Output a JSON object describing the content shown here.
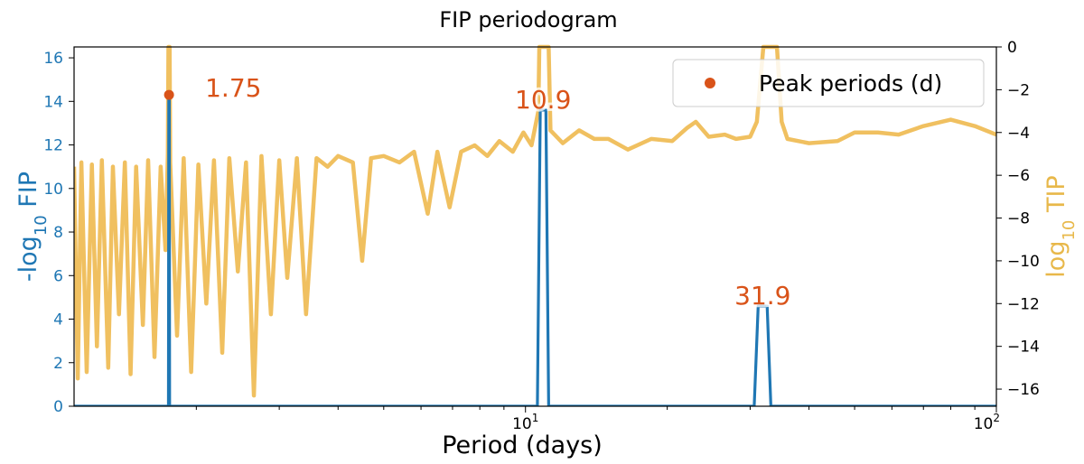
{
  "chart_data": {
    "type": "line",
    "title": "FIP periodogram",
    "xlabel": "Period (days)",
    "xscale": "log",
    "xlim": [
      1.1,
      100
    ],
    "x_ticks": [
      {
        "value": 10,
        "base": "10",
        "exp": "1"
      },
      {
        "value": 100,
        "base": "10",
        "exp": "2"
      }
    ],
    "y_left": {
      "label_prefix": "-log",
      "label_sub": "10",
      "label_suffix": " FIP",
      "lim": [
        0,
        16.5
      ],
      "ticks": [
        0,
        2,
        4,
        6,
        8,
        10,
        12,
        14,
        16
      ],
      "color": "#1f77b4"
    },
    "y_right": {
      "label_prefix": "log",
      "label_sub": "10",
      "label_suffix": " TIP",
      "lim": [
        -16.8,
        0
      ],
      "ticks": [
        0,
        -2,
        -4,
        -6,
        -8,
        -10,
        -12,
        -14,
        -16
      ],
      "color": "#f0c060"
    },
    "legend": {
      "label": "Peak periods (d)",
      "position": "upper-right"
    },
    "peaks": [
      {
        "period": 1.75,
        "label": "1.75",
        "fip": 14.3
      },
      {
        "period": 10.9,
        "label": "10.9",
        "fip": 13.6
      },
      {
        "period": 31.9,
        "label": "31.9",
        "fip": 4.6
      }
    ],
    "marker": {
      "period": 1.75,
      "fip": 14.3,
      "color": "#d95319"
    },
    "series": [
      {
        "name": "FIP",
        "axis": "left",
        "color": "#1f77b4",
        "points": [
          [
            1.1,
            0
          ],
          [
            1.745,
            0
          ],
          [
            1.748,
            14.3
          ],
          [
            1.752,
            14.3
          ],
          [
            1.755,
            0
          ],
          [
            10.6,
            0
          ],
          [
            10.75,
            13.6
          ],
          [
            11.05,
            13.6
          ],
          [
            11.2,
            0
          ],
          [
            30.6,
            0
          ],
          [
            31.2,
            4.6
          ],
          [
            32.6,
            4.6
          ],
          [
            33.2,
            0
          ],
          [
            100,
            0
          ]
        ]
      },
      {
        "name": "TIP",
        "axis": "right",
        "color": "#f0c060",
        "points": [
          [
            1.1,
            -5.6
          ],
          [
            1.12,
            -15.5
          ],
          [
            1.14,
            -5.4
          ],
          [
            1.17,
            -15.2
          ],
          [
            1.2,
            -5.5
          ],
          [
            1.23,
            -14.0
          ],
          [
            1.26,
            -5.3
          ],
          [
            1.3,
            -15.0
          ],
          [
            1.33,
            -5.6
          ],
          [
            1.37,
            -12.5
          ],
          [
            1.41,
            -5.4
          ],
          [
            1.45,
            -15.3
          ],
          [
            1.49,
            -5.6
          ],
          [
            1.54,
            -13.0
          ],
          [
            1.58,
            -5.3
          ],
          [
            1.63,
            -14.5
          ],
          [
            1.68,
            -5.6
          ],
          [
            1.72,
            -9.5
          ],
          [
            1.74,
            -5.0
          ],
          [
            1.745,
            0
          ],
          [
            1.755,
            0
          ],
          [
            1.76,
            -5.4
          ],
          [
            1.82,
            -13.5
          ],
          [
            1.88,
            -5.2
          ],
          [
            1.95,
            -15.2
          ],
          [
            2.02,
            -5.5
          ],
          [
            2.1,
            -12.0
          ],
          [
            2.18,
            -5.3
          ],
          [
            2.27,
            -14.3
          ],
          [
            2.35,
            -5.2
          ],
          [
            2.45,
            -10.5
          ],
          [
            2.55,
            -5.4
          ],
          [
            2.65,
            -16.3
          ],
          [
            2.75,
            -5.1
          ],
          [
            2.88,
            -12.5
          ],
          [
            3.0,
            -5.3
          ],
          [
            3.12,
            -10.8
          ],
          [
            3.27,
            -5.2
          ],
          [
            3.42,
            -12.5
          ],
          [
            3.6,
            -5.2
          ],
          [
            3.8,
            -5.6
          ],
          [
            4.0,
            -5.1
          ],
          [
            4.3,
            -5.4
          ],
          [
            4.5,
            -10.0
          ],
          [
            4.7,
            -5.2
          ],
          [
            5.0,
            -5.1
          ],
          [
            5.4,
            -5.4
          ],
          [
            5.8,
            -4.9
          ],
          [
            6.2,
            -7.8
          ],
          [
            6.5,
            -4.9
          ],
          [
            6.9,
            -7.5
          ],
          [
            7.3,
            -4.9
          ],
          [
            7.8,
            -4.6
          ],
          [
            8.3,
            -5.1
          ],
          [
            8.8,
            -4.4
          ],
          [
            9.4,
            -4.9
          ],
          [
            9.9,
            -4.0
          ],
          [
            10.3,
            -4.6
          ],
          [
            10.65,
            -3.0
          ],
          [
            10.7,
            0
          ],
          [
            11.2,
            0
          ],
          [
            11.3,
            -3.9
          ],
          [
            12.0,
            -4.5
          ],
          [
            13.0,
            -3.9
          ],
          [
            14.0,
            -4.3
          ],
          [
            15.0,
            -4.3
          ],
          [
            16.5,
            -4.8
          ],
          [
            18.5,
            -4.3
          ],
          [
            20.5,
            -4.4
          ],
          [
            22.0,
            -3.8
          ],
          [
            23.0,
            -3.5
          ],
          [
            24.5,
            -4.2
          ],
          [
            26.5,
            -4.1
          ],
          [
            28.0,
            -4.3
          ],
          [
            30.0,
            -4.2
          ],
          [
            31.0,
            -3.5
          ],
          [
            32.0,
            0
          ],
          [
            34.2,
            0
          ],
          [
            35.0,
            -3.5
          ],
          [
            36.0,
            -4.3
          ],
          [
            40.0,
            -4.5
          ],
          [
            46.0,
            -4.4
          ],
          [
            50.0,
            -4.0
          ],
          [
            56.0,
            -4.0
          ],
          [
            62.0,
            -4.1
          ],
          [
            70.0,
            -3.7
          ],
          [
            80.0,
            -3.4
          ],
          [
            90.0,
            -3.7
          ],
          [
            100.0,
            -4.1
          ]
        ]
      }
    ]
  }
}
